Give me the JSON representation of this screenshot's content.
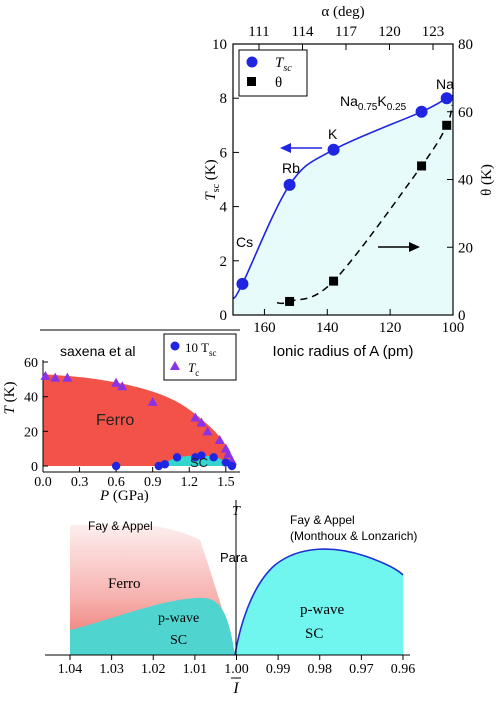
{
  "chart_data": [
    {
      "type": "scatter",
      "panel": "top",
      "xlabel": "Ionic radius of A (pm)",
      "xlim": [
        170,
        100
      ],
      "xticks": [
        160,
        140,
        120,
        100
      ],
      "ylabel_left": "T_sc (K)",
      "ylim_left": [
        0,
        10
      ],
      "yticks_left": [
        0,
        2,
        4,
        6,
        8,
        10
      ],
      "ylabel_right": "θ (K)",
      "ylim_right": [
        0,
        80
      ],
      "yticks_right": [
        0,
        20,
        40,
        60,
        80
      ],
      "top_axis_label": "α (deg)",
      "top_ticks": [
        "111",
        "114",
        "117",
        "120",
        "123"
      ],
      "legend": [
        {
          "label_main": "T",
          "label_sub": "sc",
          "marker": "circle"
        },
        {
          "label_main": "θ",
          "label_sub": "",
          "marker": "square"
        }
      ],
      "series": [
        {
          "name": "T_sc",
          "marker": "circle",
          "color": "#1f25e0",
          "points": [
            {
              "x": 167,
              "y": 1.15,
              "label": "Cs"
            },
            {
              "x": 152,
              "y": 4.8,
              "label": "Rb"
            },
            {
              "x": 138,
              "y": 6.1,
              "label": "K"
            },
            {
              "x": 110,
              "y": 7.5,
              "label": "Na0.75K0.25"
            },
            {
              "x": 102,
              "y": 8.0,
              "label": "Na"
            }
          ]
        },
        {
          "name": "θ",
          "marker": "square",
          "color": "#000000",
          "points": [
            {
              "x": 152,
              "y": 4
            },
            {
              "x": 138,
              "y": 10
            },
            {
              "x": 110,
              "y": 44
            },
            {
              "x": 102,
              "y": 56
            }
          ]
        }
      ],
      "point_labels": {
        "cs": "Cs",
        "rb": "Rb",
        "k": "K",
        "nak_main": "Na",
        "nak_sub1": "0.75",
        "nak_mid": "K",
        "nak_sub2": "0.25",
        "na": "Na"
      },
      "fill_color": "#e8fbfb"
    },
    {
      "type": "scatter",
      "panel": "middle",
      "title": "saxena et al",
      "xlabel": "P (GPa)",
      "xlim": [
        0,
        1.6
      ],
      "xticks": [
        "0.0",
        "0.3",
        "0.6",
        "0.9",
        "1.2",
        "1.5"
      ],
      "ylabel": "T (K)",
      "ylim": [
        0,
        60
      ],
      "yticks": [
        "0",
        "20",
        "40",
        "60"
      ],
      "legend": [
        {
          "label_main": "10 T",
          "label_sub": "sc",
          "marker": "circle"
        },
        {
          "label_main": "T",
          "label_sub": "c",
          "marker": "triangle"
        }
      ],
      "region_labels": {
        "ferro": "Ferro",
        "sc": "SC"
      },
      "series": [
        {
          "name": "10 T_sc",
          "marker": "circle",
          "color": "#1f25e0",
          "x": [
            0.6,
            0.95,
            1.0,
            1.1,
            1.25,
            1.3,
            1.4,
            1.5,
            1.55
          ],
          "y": [
            0,
            0,
            1,
            5,
            5,
            6,
            5,
            2,
            0
          ]
        },
        {
          "name": "T_c",
          "marker": "triangle",
          "color": "#8a32e8",
          "x": [
            0.02,
            0.1,
            0.2,
            0.6,
            0.65,
            0.9,
            1.25,
            1.3,
            1.35,
            1.45,
            1.5,
            1.52,
            1.55
          ],
          "y": [
            52,
            51,
            51,
            48,
            46,
            37,
            28,
            25,
            20,
            15,
            10,
            7,
            3
          ]
        }
      ],
      "colors": {
        "ferro": "#f25248",
        "sc": "#33d5cf"
      }
    },
    {
      "type": "area",
      "panel": "bottom",
      "xlabel": "I",
      "xlim": [
        1.04,
        0.96
      ],
      "xticks": [
        "1.04",
        "1.03",
        "1.02",
        "1.01",
        "1.00",
        "0.99",
        "0.98",
        "0.97",
        "0.96"
      ],
      "axis_top_label": "T",
      "annotations": {
        "fay_left": "Fay & Appel",
        "fay_right_line1": "Fay & Appel",
        "fay_right_line2": "(Monthoux & Lonzarich)",
        "para": "Para",
        "ferro": "Ferro",
        "pwave_left_1": "p-wave",
        "pwave_left_2": "SC",
        "pwave_right_1": "p-wave",
        "pwave_right_2": "SC"
      },
      "colors": {
        "ferro_light": "#fbe2e2",
        "ferro_dark": "#f08b87",
        "sc": "#6ff7f0",
        "line": "#1f2fd4"
      }
    }
  ]
}
